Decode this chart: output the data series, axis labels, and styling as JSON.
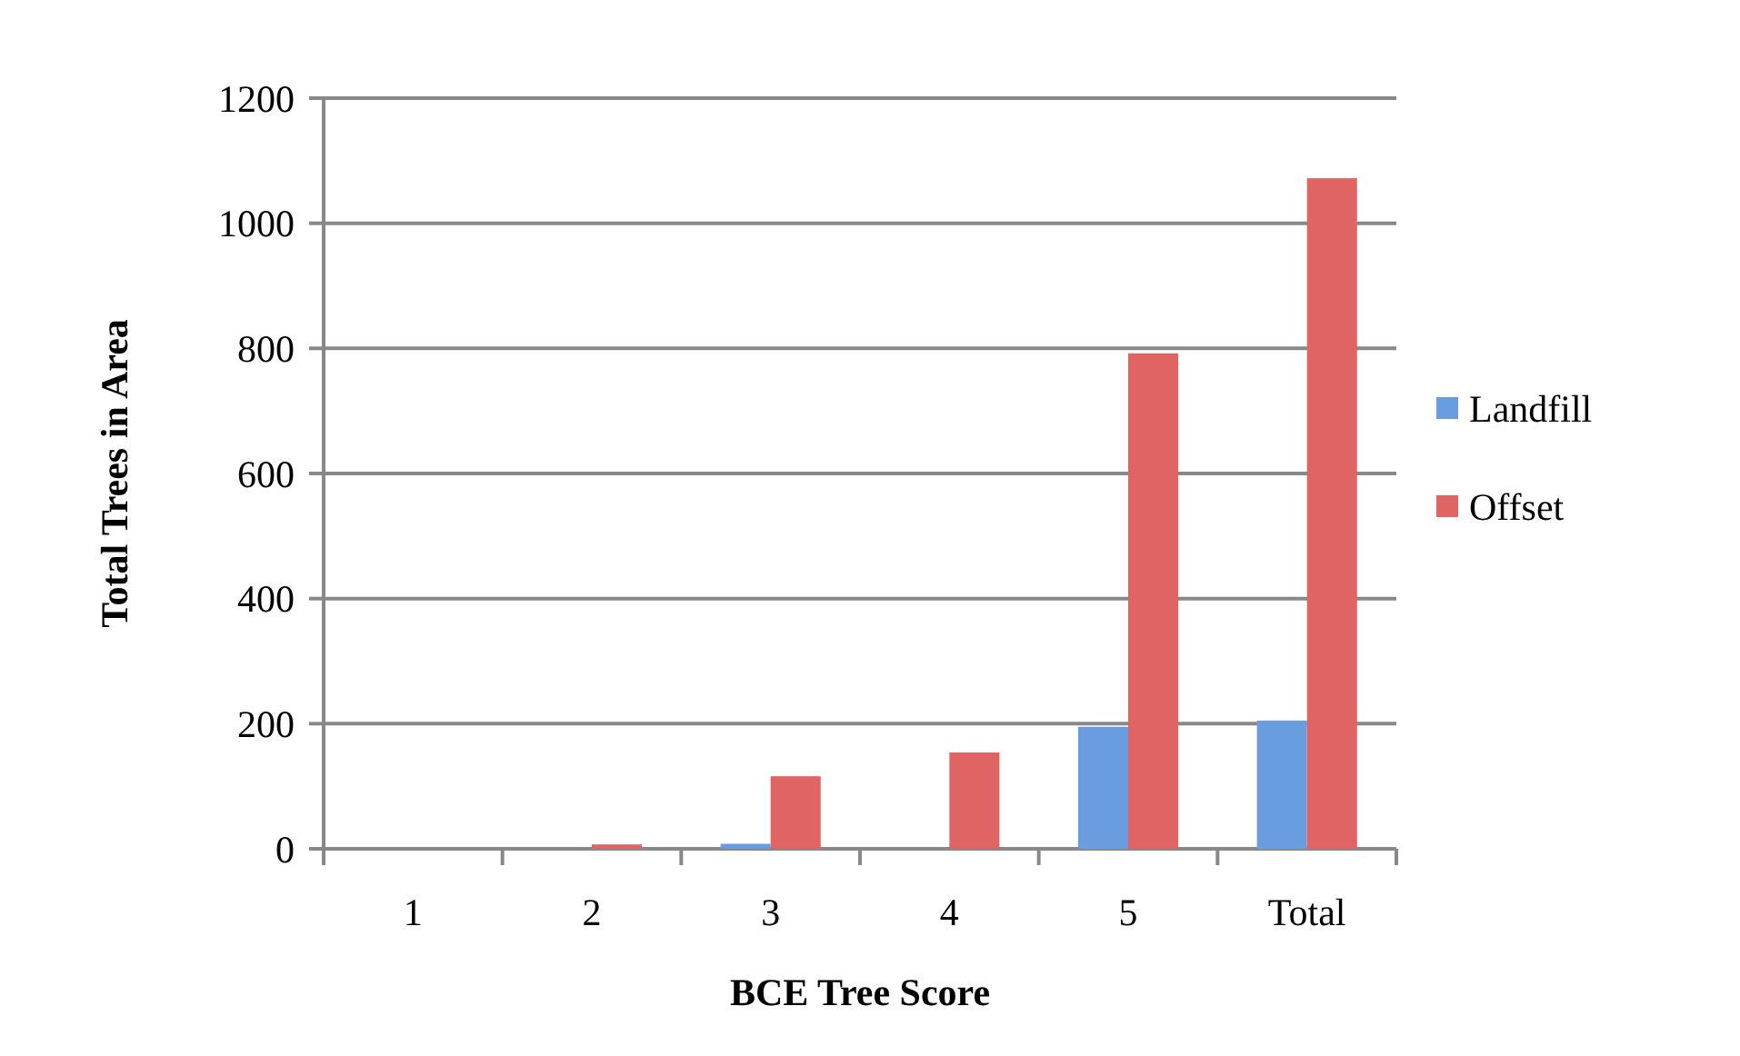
{
  "chart_data": {
    "type": "bar",
    "xlabel": "BCE Tree Score",
    "ylabel": "Total Trees in Area",
    "categories": [
      "1",
      "2",
      "3",
      "4",
      "5",
      "Total"
    ],
    "series": [
      {
        "name": "Landfill",
        "color": "#6a9de0",
        "values": [
          0,
          0,
          8,
          0,
          195,
          205
        ]
      },
      {
        "name": "Offset",
        "color": "#e06464",
        "values": [
          0,
          7,
          116,
          154,
          792,
          1072
        ]
      }
    ],
    "ylim": [
      0,
      1200
    ],
    "yticks": [
      0,
      200,
      400,
      600,
      800,
      1000,
      1200
    ],
    "grid": "y",
    "legend": "right"
  }
}
